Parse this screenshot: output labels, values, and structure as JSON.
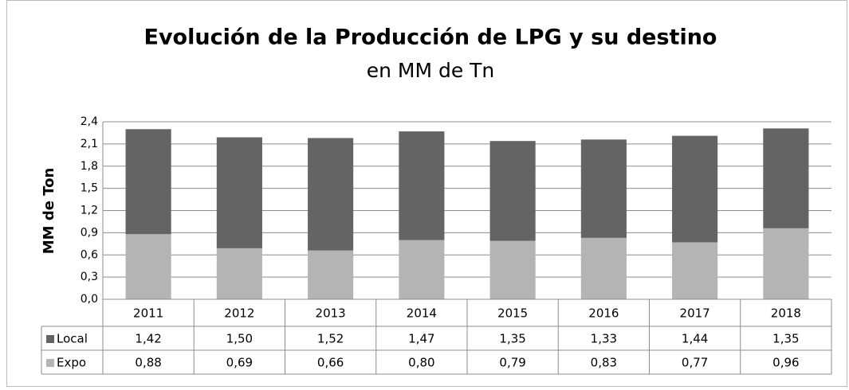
{
  "chart_data": {
    "type": "stacked_bar",
    "title": "Evolución de la Producción de LPG y su destino",
    "subtitle": "en MM de Tn",
    "y_label": "MM de Ton",
    "categories": [
      "2011",
      "2012",
      "2013",
      "2014",
      "2015",
      "2016",
      "2017",
      "2018"
    ],
    "series": [
      {
        "name": "Local",
        "color": "#646464",
        "values": [
          1.42,
          1.5,
          1.52,
          1.47,
          1.35,
          1.33,
          1.44,
          1.35
        ],
        "value_labels": [
          "1,42",
          "1,50",
          "1,52",
          "1,47",
          "1,35",
          "1,33",
          "1,44",
          "1,35"
        ]
      },
      {
        "name": "Expo",
        "color": "#b4b4b4",
        "values": [
          0.88,
          0.69,
          0.66,
          0.8,
          0.79,
          0.83,
          0.77,
          0.96
        ],
        "value_labels": [
          "0,88",
          "0,69",
          "0,66",
          "0,80",
          "0,79",
          "0,83",
          "0,77",
          "0,96"
        ]
      }
    ],
    "ylim": [
      0,
      2.4
    ],
    "yticks": [
      {
        "value": 0,
        "label": "0,0"
      },
      {
        "value": 0.3,
        "label": "0,3"
      },
      {
        "value": 0.6,
        "label": "0,6"
      },
      {
        "value": 0.9,
        "label": "0,9"
      },
      {
        "value": 1.2,
        "label": "1,2"
      },
      {
        "value": 1.5,
        "label": "1,5"
      },
      {
        "value": 1.8,
        "label": "1,8"
      },
      {
        "value": 2.1,
        "label": "2,1"
      },
      {
        "value": 2.4,
        "label": "2,4"
      }
    ],
    "grid": true
  }
}
